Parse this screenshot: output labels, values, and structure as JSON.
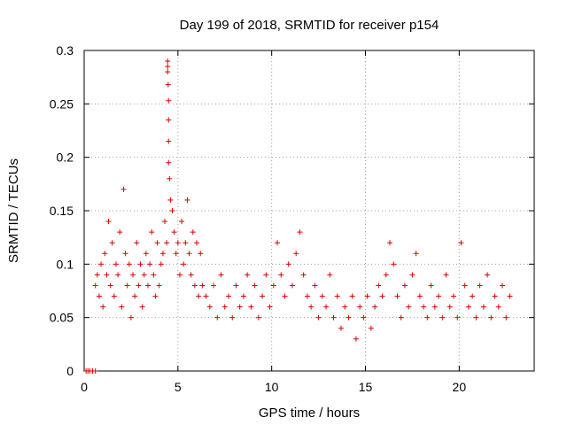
{
  "chart_data": {
    "type": "scatter",
    "title": "Day 199 of 2018, SRMTID for receiver p154",
    "xlabel": "GPS time / hours",
    "ylabel": "SRMTID / TECUs",
    "xlim": [
      0,
      24
    ],
    "ylim": [
      0,
      0.3
    ],
    "xticks": [
      0,
      5,
      10,
      15,
      20
    ],
    "xtick_labels": [
      "0",
      "5",
      "10",
      "15",
      "20"
    ],
    "yticks": [
      0,
      0.05,
      0.1,
      0.15,
      0.2,
      0.25,
      0.3
    ],
    "ytick_labels": [
      "0",
      "0.05",
      "0.1",
      "0.15",
      "0.2",
      "0.25",
      "0.3"
    ],
    "grid": true,
    "marker": "+",
    "color": "#e00000",
    "series": [
      {
        "name": "SRMTID",
        "x": [
          0.1,
          0.2,
          0.3,
          0.45,
          0.6,
          0.6,
          0.7,
          0.8,
          0.9,
          1.0,
          1.1,
          1.2,
          1.3,
          1.4,
          1.5,
          1.6,
          1.7,
          1.8,
          1.9,
          2.0,
          2.1,
          2.2,
          2.3,
          2.4,
          2.5,
          2.6,
          2.7,
          2.8,
          2.9,
          3.0,
          3.1,
          3.2,
          3.3,
          3.4,
          3.5,
          3.6,
          3.7,
          3.8,
          3.9,
          4.0,
          4.1,
          4.2,
          4.3,
          4.4,
          4.45,
          4.45,
          4.45,
          4.48,
          4.5,
          4.5,
          4.5,
          4.5,
          4.55,
          4.6,
          4.7,
          4.8,
          4.9,
          5.0,
          5.1,
          5.2,
          5.3,
          5.4,
          5.5,
          5.6,
          5.7,
          5.8,
          5.9,
          6.0,
          6.1,
          6.2,
          6.3,
          6.5,
          6.7,
          6.9,
          7.1,
          7.3,
          7.5,
          7.7,
          7.9,
          8.1,
          8.3,
          8.5,
          8.7,
          8.9,
          9.1,
          9.3,
          9.5,
          9.7,
          9.9,
          10.1,
          10.3,
          10.5,
          10.7,
          10.9,
          11.1,
          11.3,
          11.5,
          11.7,
          11.9,
          12.1,
          12.3,
          12.5,
          12.7,
          12.9,
          13.1,
          13.3,
          13.5,
          13.7,
          13.9,
          14.1,
          14.3,
          14.5,
          14.7,
          14.9,
          15.1,
          15.3,
          15.5,
          15.7,
          15.9,
          16.1,
          16.3,
          16.5,
          16.7,
          16.9,
          17.1,
          17.3,
          17.5,
          17.7,
          17.9,
          18.1,
          18.3,
          18.5,
          18.7,
          18.9,
          19.1,
          19.3,
          19.5,
          19.7,
          19.9,
          20.1,
          20.3,
          20.5,
          20.7,
          20.9,
          21.1,
          21.3,
          21.5,
          21.7,
          21.9,
          22.1,
          22.3,
          22.5,
          22.7
        ],
        "y": [
          0,
          0,
          0,
          0,
          0,
          0.08,
          0.09,
          0.07,
          0.1,
          0.06,
          0.11,
          0.09,
          0.14,
          0.08,
          0.12,
          0.07,
          0.1,
          0.09,
          0.13,
          0.06,
          0.17,
          0.11,
          0.08,
          0.1,
          0.05,
          0.09,
          0.07,
          0.12,
          0.08,
          0.1,
          0.06,
          0.09,
          0.11,
          0.08,
          0.1,
          0.13,
          0.09,
          0.07,
          0.12,
          0.08,
          0.1,
          0.11,
          0.14,
          0.12,
          0.29,
          0.285,
          0.28,
          0.268,
          0.253,
          0.235,
          0.215,
          0.195,
          0.18,
          0.16,
          0.15,
          0.13,
          0.11,
          0.12,
          0.09,
          0.14,
          0.1,
          0.12,
          0.16,
          0.11,
          0.09,
          0.13,
          0.08,
          0.12,
          0.07,
          0.11,
          0.08,
          0.07,
          0.06,
          0.08,
          0.05,
          0.09,
          0.06,
          0.07,
          0.05,
          0.08,
          0.06,
          0.07,
          0.09,
          0.06,
          0.08,
          0.05,
          0.07,
          0.09,
          0.06,
          0.08,
          0.12,
          0.09,
          0.07,
          0.1,
          0.08,
          0.11,
          0.13,
          0.09,
          0.07,
          0.06,
          0.08,
          0.05,
          0.07,
          0.06,
          0.09,
          0.05,
          0.07,
          0.04,
          0.06,
          0.05,
          0.07,
          0.03,
          0.06,
          0.05,
          0.07,
          0.04,
          0.06,
          0.08,
          0.07,
          0.09,
          0.12,
          0.1,
          0.07,
          0.05,
          0.08,
          0.06,
          0.09,
          0.11,
          0.07,
          0.06,
          0.05,
          0.08,
          0.06,
          0.07,
          0.05,
          0.09,
          0.06,
          0.07,
          0.05,
          0.12,
          0.08,
          0.06,
          0.07,
          0.05,
          0.08,
          0.06,
          0.09,
          0.05,
          0.07,
          0.06,
          0.08,
          0.05,
          0.07
        ]
      }
    ],
    "notes": "Dense scatter of + markers; values listed are representative samples read from the figure."
  }
}
